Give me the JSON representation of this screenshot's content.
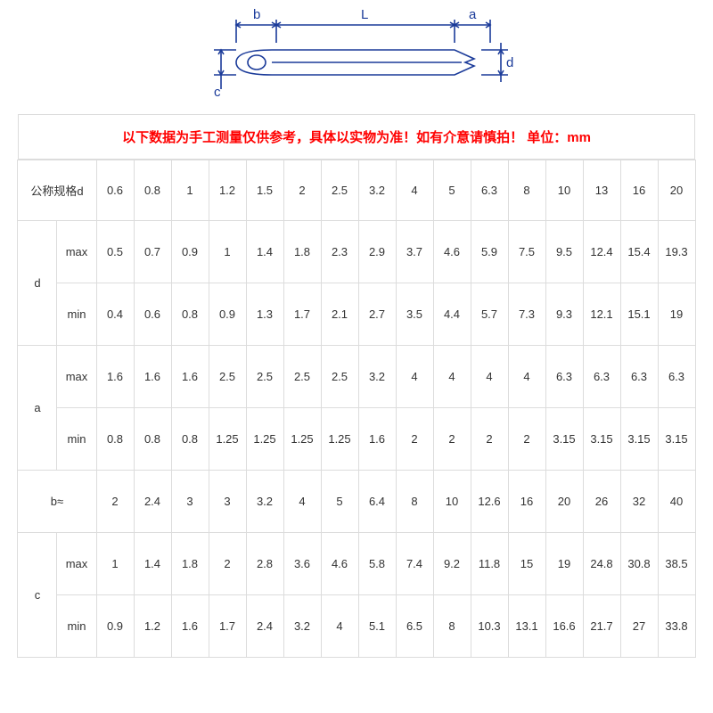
{
  "diagram": {
    "labels": {
      "b": "b",
      "L": "L",
      "a": "a",
      "d": "d",
      "c": "c"
    },
    "stroke_color": "#1a3a99",
    "stroke_width": 1.6
  },
  "notice": {
    "text": "以下数据为手工测量仅供参考，具体以实物为准！如有介意请慎拍！  单位：mm",
    "color": "#ff0000"
  },
  "table": {
    "border_color": "#dcdcdc",
    "text_color": "#333333",
    "font_size": 13,
    "nominal_label": "公称规格d",
    "nominal_values": [
      "0.6",
      "0.8",
      "1",
      "1.2",
      "1.5",
      "2",
      "2.5",
      "3.2",
      "4",
      "5",
      "6.3",
      "8",
      "10",
      "13",
      "16",
      "20"
    ],
    "rows": [
      {
        "group": "d",
        "sub": "max",
        "values": [
          "0.5",
          "0.7",
          "0.9",
          "1",
          "1.4",
          "1.8",
          "2.3",
          "2.9",
          "3.7",
          "4.6",
          "5.9",
          "7.5",
          "9.5",
          "12.4",
          "15.4",
          "19.3"
        ]
      },
      {
        "group": "",
        "sub": "min",
        "values": [
          "0.4",
          "0.6",
          "0.8",
          "0.9",
          "1.3",
          "1.7",
          "2.1",
          "2.7",
          "3.5",
          "4.4",
          "5.7",
          "7.3",
          "9.3",
          "12.1",
          "15.1",
          "19"
        ]
      },
      {
        "group": "a",
        "sub": "max",
        "values": [
          "1.6",
          "1.6",
          "1.6",
          "2.5",
          "2.5",
          "2.5",
          "2.5",
          "3.2",
          "4",
          "4",
          "4",
          "4",
          "6.3",
          "6.3",
          "6.3",
          "6.3"
        ]
      },
      {
        "group": "",
        "sub": "min",
        "values": [
          "0.8",
          "0.8",
          "0.8",
          "1.25",
          "1.25",
          "1.25",
          "1.25",
          "1.6",
          "2",
          "2",
          "2",
          "2",
          "3.15",
          "3.15",
          "3.15",
          "3.15"
        ]
      },
      {
        "group": "b≈",
        "sub": "",
        "values": [
          "2",
          "2.4",
          "3",
          "3",
          "3.2",
          "4",
          "5",
          "6.4",
          "8",
          "10",
          "12.6",
          "16",
          "20",
          "26",
          "32",
          "40"
        ]
      },
      {
        "group": "c",
        "sub": "max",
        "values": [
          "1",
          "1.4",
          "1.8",
          "2",
          "2.8",
          "3.6",
          "4.6",
          "5.8",
          "7.4",
          "9.2",
          "11.8",
          "15",
          "19",
          "24.8",
          "30.8",
          "38.5"
        ]
      },
      {
        "group": "",
        "sub": "min",
        "values": [
          "0.9",
          "1.2",
          "1.6",
          "1.7",
          "2.4",
          "3.2",
          "4",
          "5.1",
          "6.5",
          "8",
          "10.3",
          "13.1",
          "16.6",
          "21.7",
          "27",
          "33.8"
        ]
      }
    ]
  }
}
